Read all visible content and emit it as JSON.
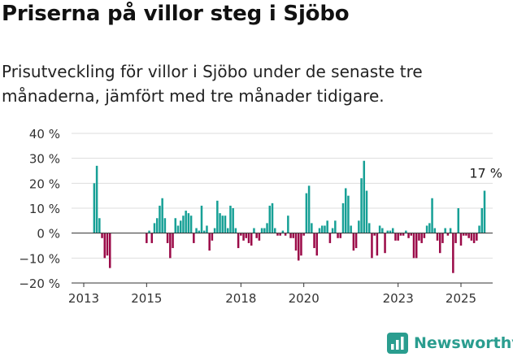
{
  "header": {
    "title": "Priserna på villor steg i Sjöbo",
    "subtitle": "Prisutveckling för villor i Sjöbo under de senaste tre månaderna, jämfört med tre månader tidigare."
  },
  "brand": {
    "name": "Newsworthy",
    "icon": "chart-bars-icon",
    "color": "#2a9d8f"
  },
  "colors": {
    "positive": "#17a096",
    "negative": "#9b0a48",
    "grid": "#dddddd",
    "axis": "#333333"
  },
  "chart_data": {
    "type": "bar",
    "title": "",
    "xlabel": "",
    "ylabel": "",
    "ylim": [
      -20,
      40
    ],
    "yticks": [
      -20,
      -10,
      0,
      10,
      20,
      30,
      40
    ],
    "ytick_labels": [
      "−20 %",
      "−10 %",
      "0 %",
      "10 %",
      "20 %",
      "30 %",
      "40 %"
    ],
    "grid": true,
    "x_start": "2013-05",
    "x_end": "2025-10",
    "xticks": [
      {
        "x": "2013-01",
        "label": "2013"
      },
      {
        "x": "2015-01",
        "label": "2015"
      },
      {
        "x": "2018-01",
        "label": "2018"
      },
      {
        "x": "2020-01",
        "label": "2020"
      },
      {
        "x": "2023-01",
        "label": "2023"
      },
      {
        "x": "2025-01",
        "label": "2025"
      }
    ],
    "annotation": {
      "x": "2025-10",
      "value": 17,
      "text": "17 %"
    },
    "points": [
      {
        "x": "2013-05",
        "v": 20
      },
      {
        "x": "2013-06",
        "v": 27
      },
      {
        "x": "2013-07",
        "v": 6
      },
      {
        "x": "2013-08",
        "v": -2
      },
      {
        "x": "2013-09",
        "v": -10
      },
      {
        "x": "2013-10",
        "v": -9
      },
      {
        "x": "2013-11",
        "v": -14
      },
      {
        "x": "2015-01",
        "v": -4
      },
      {
        "x": "2015-02",
        "v": 1
      },
      {
        "x": "2015-03",
        "v": -4
      },
      {
        "x": "2015-04",
        "v": 4
      },
      {
        "x": "2015-05",
        "v": 6
      },
      {
        "x": "2015-06",
        "v": 11
      },
      {
        "x": "2015-07",
        "v": 14
      },
      {
        "x": "2015-08",
        "v": 6
      },
      {
        "x": "2015-09",
        "v": -4
      },
      {
        "x": "2015-10",
        "v": -10
      },
      {
        "x": "2015-11",
        "v": -6
      },
      {
        "x": "2015-12",
        "v": 6
      },
      {
        "x": "2016-01",
        "v": 3
      },
      {
        "x": "2016-02",
        "v": 5
      },
      {
        "x": "2016-03",
        "v": 7
      },
      {
        "x": "2016-04",
        "v": 9
      },
      {
        "x": "2016-05",
        "v": 8
      },
      {
        "x": "2016-06",
        "v": 7
      },
      {
        "x": "2016-07",
        "v": -4
      },
      {
        "x": "2016-08",
        "v": 2
      },
      {
        "x": "2016-09",
        "v": 1
      },
      {
        "x": "2016-10",
        "v": 11
      },
      {
        "x": "2016-11",
        "v": 1
      },
      {
        "x": "2016-12",
        "v": 3
      },
      {
        "x": "2017-01",
        "v": -7
      },
      {
        "x": "2017-02",
        "v": -3
      },
      {
        "x": "2017-03",
        "v": 2
      },
      {
        "x": "2017-04",
        "v": 13
      },
      {
        "x": "2017-05",
        "v": 8
      },
      {
        "x": "2017-06",
        "v": 7
      },
      {
        "x": "2017-07",
        "v": 7
      },
      {
        "x": "2017-08",
        "v": 2
      },
      {
        "x": "2017-09",
        "v": 11
      },
      {
        "x": "2017-10",
        "v": 10
      },
      {
        "x": "2017-11",
        "v": 2
      },
      {
        "x": "2017-12",
        "v": -6
      },
      {
        "x": "2018-01",
        "v": -1
      },
      {
        "x": "2018-02",
        "v": -3
      },
      {
        "x": "2018-03",
        "v": -2
      },
      {
        "x": "2018-04",
        "v": -4
      },
      {
        "x": "2018-05",
        "v": -5
      },
      {
        "x": "2018-06",
        "v": 2
      },
      {
        "x": "2018-07",
        "v": -2
      },
      {
        "x": "2018-08",
        "v": -3
      },
      {
        "x": "2018-09",
        "v": 2
      },
      {
        "x": "2018-10",
        "v": 2
      },
      {
        "x": "2018-11",
        "v": 4
      },
      {
        "x": "2018-12",
        "v": 11
      },
      {
        "x": "2019-01",
        "v": 12
      },
      {
        "x": "2019-02",
        "v": 2
      },
      {
        "x": "2019-03",
        "v": -1
      },
      {
        "x": "2019-04",
        "v": -1
      },
      {
        "x": "2019-05",
        "v": 1
      },
      {
        "x": "2019-06",
        "v": -1
      },
      {
        "x": "2019-07",
        "v": 7
      },
      {
        "x": "2019-08",
        "v": -2
      },
      {
        "x": "2019-09",
        "v": -2
      },
      {
        "x": "2019-10",
        "v": -7
      },
      {
        "x": "2019-11",
        "v": -11
      },
      {
        "x": "2019-12",
        "v": -9
      },
      {
        "x": "2020-01",
        "v": -1
      },
      {
        "x": "2020-02",
        "v": 16
      },
      {
        "x": "2020-03",
        "v": 19
      },
      {
        "x": "2020-04",
        "v": 4
      },
      {
        "x": "2020-05",
        "v": -6
      },
      {
        "x": "2020-06",
        "v": -9
      },
      {
        "x": "2020-07",
        "v": 2
      },
      {
        "x": "2020-08",
        "v": 3
      },
      {
        "x": "2020-09",
        "v": 3
      },
      {
        "x": "2020-10",
        "v": 5
      },
      {
        "x": "2020-11",
        "v": -4
      },
      {
        "x": "2020-12",
        "v": 2
      },
      {
        "x": "2021-01",
        "v": 5
      },
      {
        "x": "2021-02",
        "v": -2
      },
      {
        "x": "2021-03",
        "v": -2
      },
      {
        "x": "2021-04",
        "v": 12
      },
      {
        "x": "2021-05",
        "v": 18
      },
      {
        "x": "2021-06",
        "v": 15
      },
      {
        "x": "2021-07",
        "v": 3
      },
      {
        "x": "2021-08",
        "v": -7
      },
      {
        "x": "2021-09",
        "v": -6
      },
      {
        "x": "2021-10",
        "v": 5
      },
      {
        "x": "2021-11",
        "v": 22
      },
      {
        "x": "2021-12",
        "v": 29
      },
      {
        "x": "2022-01",
        "v": 17
      },
      {
        "x": "2022-02",
        "v": 4
      },
      {
        "x": "2022-03",
        "v": -10
      },
      {
        "x": "2022-04",
        "v": -1
      },
      {
        "x": "2022-05",
        "v": -9
      },
      {
        "x": "2022-06",
        "v": 3
      },
      {
        "x": "2022-07",
        "v": 2
      },
      {
        "x": "2022-08",
        "v": -8
      },
      {
        "x": "2022-09",
        "v": 1
      },
      {
        "x": "2022-10",
        "v": 1
      },
      {
        "x": "2022-11",
        "v": 2
      },
      {
        "x": "2022-12",
        "v": -3
      },
      {
        "x": "2023-01",
        "v": -3
      },
      {
        "x": "2023-02",
        "v": -1
      },
      {
        "x": "2023-03",
        "v": -1
      },
      {
        "x": "2023-04",
        "v": 1
      },
      {
        "x": "2023-05",
        "v": -2
      },
      {
        "x": "2023-06",
        "v": -1
      },
      {
        "x": "2023-07",
        "v": -10
      },
      {
        "x": "2023-08",
        "v": -10
      },
      {
        "x": "2023-09",
        "v": -3
      },
      {
        "x": "2023-10",
        "v": -4
      },
      {
        "x": "2023-11",
        "v": -2
      },
      {
        "x": "2023-12",
        "v": 3
      },
      {
        "x": "2024-01",
        "v": 4
      },
      {
        "x": "2024-02",
        "v": 14
      },
      {
        "x": "2024-03",
        "v": 2
      },
      {
        "x": "2024-04",
        "v": -3
      },
      {
        "x": "2024-05",
        "v": -8
      },
      {
        "x": "2024-06",
        "v": -4
      },
      {
        "x": "2024-07",
        "v": 2
      },
      {
        "x": "2024-08",
        "v": -1
      },
      {
        "x": "2024-09",
        "v": 2
      },
      {
        "x": "2024-10",
        "v": -16
      },
      {
        "x": "2024-11",
        "v": -4
      },
      {
        "x": "2024-12",
        "v": 10
      },
      {
        "x": "2025-01",
        "v": -5
      },
      {
        "x": "2025-02",
        "v": -1
      },
      {
        "x": "2025-03",
        "v": -1
      },
      {
        "x": "2025-04",
        "v": -2
      },
      {
        "x": "2025-05",
        "v": -3
      },
      {
        "x": "2025-06",
        "v": -4
      },
      {
        "x": "2025-07",
        "v": -3
      },
      {
        "x": "2025-08",
        "v": 3
      },
      {
        "x": "2025-09",
        "v": 10
      },
      {
        "x": "2025-10",
        "v": 17
      }
    ]
  }
}
